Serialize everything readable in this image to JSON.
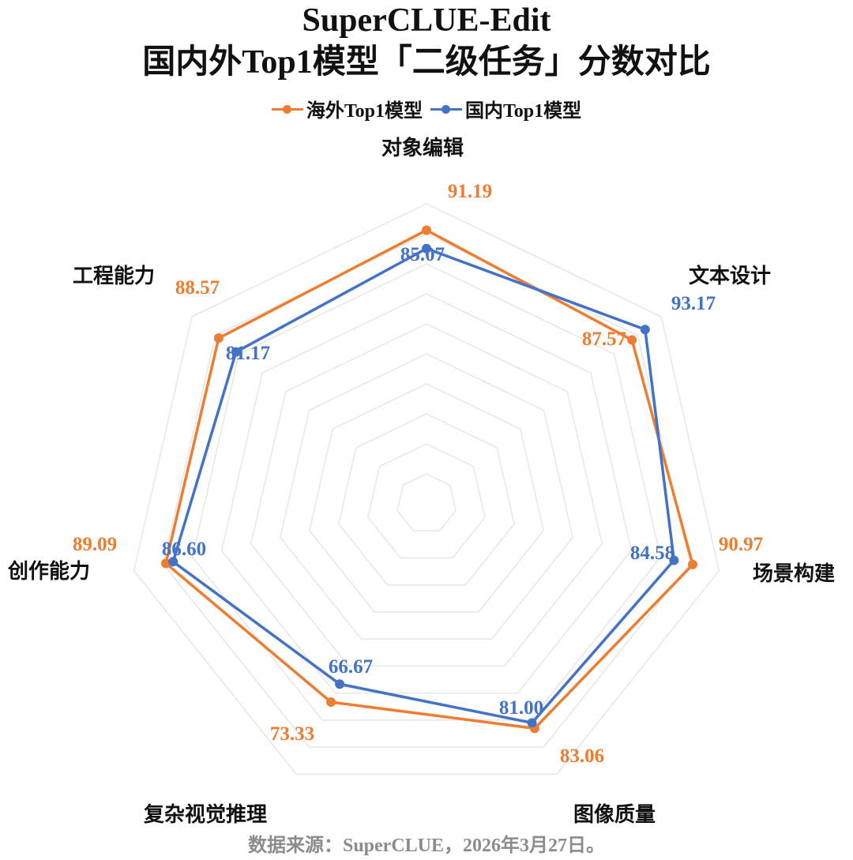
{
  "title_line1": "SuperCLUE-Edit",
  "title_line2": "国内外Top1模型「二级任务」分数对比",
  "source": "数据来源：SuperCLUE，2026年3月27日。",
  "legend": [
    "海外Top1模型",
    "国内Top1模型"
  ],
  "colors": {
    "overseas": "#ED7D31",
    "domestic": "#4472C4",
    "grid": "#e6e6e6"
  },
  "chart_data": {
    "type": "radar",
    "categories": [
      "对象编辑",
      "文本设计",
      "场景构建",
      "图像质量",
      "复杂视觉推理",
      "创作能力",
      "工程能力"
    ],
    "series": [
      {
        "name": "海外Top1模型",
        "values": [
          91.19,
          87.57,
          90.97,
          83.06,
          73.33,
          89.09,
          88.57
        ]
      },
      {
        "name": "国内Top1模型",
        "values": [
          85.07,
          93.17,
          84.58,
          81.0,
          66.67,
          86.6,
          81.17
        ]
      }
    ],
    "value_labels": {
      "海外Top1模型": [
        "91.19",
        "87.57",
        "90.97",
        "83.06",
        "73.33",
        "89.09",
        "88.57"
      ],
      "国内Top1模型": [
        "85.07",
        "93.17",
        "84.58",
        "81.00",
        "66.67",
        "86.60",
        "81.17"
      ]
    },
    "rlim": [
      0,
      100
    ],
    "grid_rings": 10,
    "grid": true,
    "legend_position": "top"
  }
}
